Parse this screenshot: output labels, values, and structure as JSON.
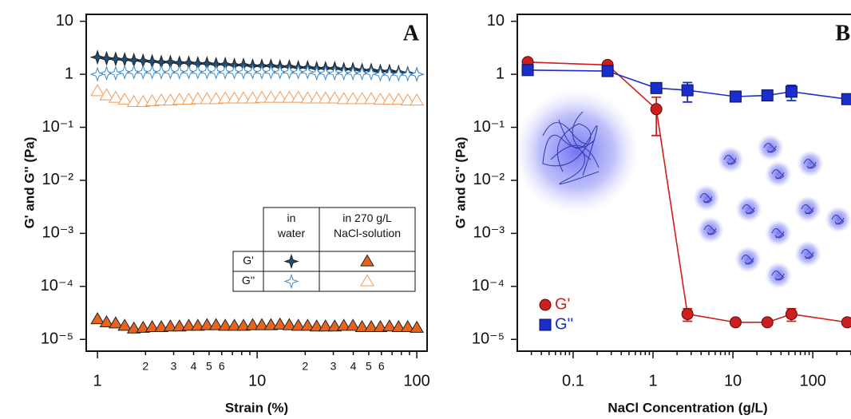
{
  "chart_data": [
    {
      "type": "scatter",
      "title": "A",
      "xlabel": "Strain (%)",
      "ylabel": "G' and G'' (Pa)",
      "xscale": "log",
      "yscale": "log",
      "xlim": [
        0.85,
        116
      ],
      "ylim": [
        6e-06,
        13.5
      ],
      "xticks": [
        1,
        2,
        3,
        4,
        5,
        6,
        10,
        {
          "value": 20,
          "label": "2"
        },
        {
          "value": 30,
          "label": "3"
        },
        {
          "value": 40,
          "label": "4"
        },
        {
          "value": 50,
          "label": "5"
        },
        {
          "value": 60,
          "label": "6"
        },
        100
      ],
      "xminorticks": [
        7,
        8,
        9,
        70,
        80,
        90
      ],
      "yticks": [
        {
          "value": 1e-05,
          "label": "10⁻⁵"
        },
        {
          "value": 0.0001,
          "label": "10⁻⁴"
        },
        {
          "value": 0.001,
          "label": "10⁻³"
        },
        {
          "value": 0.01,
          "label": "10⁻²"
        },
        {
          "value": 0.1,
          "label": "10⁻¹"
        },
        1,
        10
      ],
      "x": [
        1,
        1.14,
        1.3,
        1.48,
        1.69,
        1.93,
        2.2,
        2.51,
        2.86,
        3.26,
        3.73,
        4.25,
        4.85,
        5.53,
        6.31,
        7.2,
        8.21,
        9.37,
        10.7,
        12.2,
        13.9,
        15.9,
        18.1,
        20.7,
        23.6,
        26.8,
        30.6,
        34.9,
        39.8,
        45.4,
        51.8,
        59.1,
        67.4,
        76.9,
        87.7,
        100
      ],
      "legend": {
        "columns": [
          "in water",
          "in 270 g/L NaCl-solution"
        ],
        "rows": [
          "G'",
          "G''"
        ]
      },
      "series": [
        {
          "color": "#1f4e79",
          "marker": "star",
          "filled": true,
          "values": [
            2.1,
            2.0,
            1.95,
            1.9,
            1.85,
            1.8,
            1.75,
            1.7,
            1.7,
            1.65,
            1.65,
            1.6,
            1.6,
            1.55,
            1.55,
            1.5,
            1.5,
            1.45,
            1.45,
            1.45,
            1.4,
            1.4,
            1.35,
            1.35,
            1.3,
            1.3,
            1.3,
            1.25,
            1.25,
            1.2,
            1.2,
            1.15,
            1.15,
            1.1,
            1.05,
            1.0
          ]
        },
        {
          "color": "#3c8ac8",
          "marker": "star",
          "filled": false,
          "values": [
            1.0,
            1.05,
            1.05,
            1.1,
            1.1,
            1.1,
            1.1,
            1.1,
            1.1,
            1.1,
            1.1,
            1.1,
            1.1,
            1.1,
            1.1,
            1.1,
            1.1,
            1.1,
            1.1,
            1.1,
            1.1,
            1.1,
            1.1,
            1.1,
            1.05,
            1.05,
            1.05,
            1.05,
            1.05,
            1.05,
            1.05,
            1.0,
            1.0,
            1.0,
            1.0,
            1.0
          ]
        },
        {
          "color": "#e8641e",
          "marker": "triangle",
          "filled": true,
          "values": [
            2.4e-05,
            2.1e-05,
            2e-05,
            1.8e-05,
            1.6e-05,
            1.65e-05,
            1.7e-05,
            1.7e-05,
            1.75e-05,
            1.75e-05,
            1.8e-05,
            1.8e-05,
            1.85e-05,
            1.85e-05,
            1.8e-05,
            1.8e-05,
            1.8e-05,
            1.85e-05,
            1.85e-05,
            1.85e-05,
            1.9e-05,
            1.85e-05,
            1.8e-05,
            1.8e-05,
            1.75e-05,
            1.75e-05,
            1.75e-05,
            1.8e-05,
            1.8e-05,
            1.7e-05,
            1.7e-05,
            1.7e-05,
            1.75e-05,
            1.7e-05,
            1.7e-05,
            1.65e-05
          ]
        },
        {
          "color": "#f39a55",
          "marker": "triangle",
          "filled": false,
          "values": [
            0.48,
            0.4,
            0.36,
            0.33,
            0.3,
            0.3,
            0.31,
            0.32,
            0.32,
            0.33,
            0.33,
            0.34,
            0.34,
            0.34,
            0.35,
            0.35,
            0.35,
            0.35,
            0.36,
            0.36,
            0.36,
            0.36,
            0.36,
            0.35,
            0.35,
            0.35,
            0.35,
            0.34,
            0.34,
            0.34,
            0.34,
            0.33,
            0.33,
            0.33,
            0.32,
            0.32
          ]
        }
      ]
    },
    {
      "type": "line",
      "title": "B",
      "xlabel": "NaCl Concentration (g/L)",
      "ylabel": "G' and G'' (Pa)",
      "xscale": "log",
      "yscale": "log",
      "xlim": [
        0.02,
        370
      ],
      "ylim": [
        6e-06,
        13.5
      ],
      "xticks": [
        0.1,
        1,
        10,
        100
      ],
      "xminorticks": [
        0.03,
        0.04,
        0.05,
        0.06,
        0.07,
        0.08,
        0.09,
        0.2,
        0.3,
        0.4,
        0.5,
        0.6,
        0.7,
        0.8,
        0.9,
        2,
        3,
        4,
        5,
        6,
        7,
        8,
        9,
        20,
        30,
        40,
        50,
        60,
        70,
        80,
        90,
        200,
        300
      ],
      "yticks": [
        {
          "value": 1e-05,
          "label": "10⁻⁵"
        },
        {
          "value": 0.0001,
          "label": "10⁻⁴"
        },
        {
          "value": 0.001,
          "label": "10⁻³"
        },
        {
          "value": 0.01,
          "label": "10⁻²"
        },
        {
          "value": 0.1,
          "label": "10⁻¹"
        },
        1,
        10
      ],
      "x": [
        0.027,
        0.27,
        1.1,
        2.7,
        10.8,
        27,
        54,
        270
      ],
      "legend_loc": "lower left",
      "series": [
        {
          "name": "G'",
          "color": "#cc1f1f",
          "marker": "circle",
          "filled": true,
          "values": [
            1.7,
            1.5,
            0.22,
            3e-05,
            2.1e-05,
            2.1e-05,
            3e-05,
            2.1e-05
          ],
          "errors": [
            null,
            0.2,
            0.15,
            8e-06,
            null,
            null,
            8e-06,
            null
          ]
        },
        {
          "name": "G''",
          "color": "#1a2ecc",
          "marker": "square",
          "filled": true,
          "values": [
            1.2,
            1.15,
            0.55,
            0.5,
            0.38,
            0.4,
            0.47,
            0.34
          ],
          "errors": [
            null,
            null,
            0.08,
            0.2,
            null,
            0.07,
            0.15,
            null
          ]
        }
      ]
    }
  ]
}
